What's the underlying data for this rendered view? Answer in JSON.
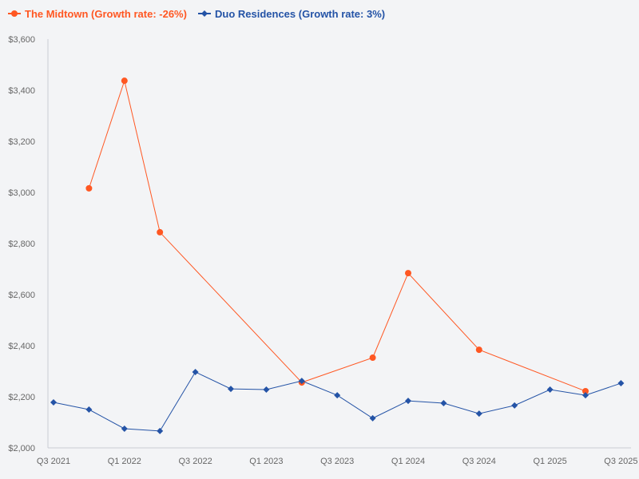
{
  "chart_data": {
    "type": "line",
    "title": "",
    "xlabel": "",
    "ylabel": "",
    "ylim": [
      2000,
      3600
    ],
    "yticks": [
      "$2,000",
      "$2,200",
      "$2,400",
      "$2,600",
      "$2,800",
      "$3,000",
      "$3,200",
      "$3,400",
      "$3,600"
    ],
    "ytick_values": [
      2000,
      2200,
      2400,
      2600,
      2800,
      3000,
      3200,
      3400,
      3600
    ],
    "categories": [
      "Q3 2021",
      "Q4 2021",
      "Q1 2022",
      "Q2 2022",
      "Q3 2022",
      "Q4 2022",
      "Q1 2023",
      "Q2 2023",
      "Q3 2023",
      "Q4 2023",
      "Q1 2024",
      "Q2 2024",
      "Q3 2024",
      "Q4 2024",
      "Q1 2025",
      "Q2 2025",
      "Q3 2025"
    ],
    "xtick_labels": [
      "Q3 2021",
      "Q1 2022",
      "Q3 2022",
      "Q1 2023",
      "Q3 2023",
      "Q1 2024",
      "Q3 2024",
      "Q1 2025",
      "Q3 2025"
    ],
    "grid": false,
    "legend_position": "top-left",
    "series": [
      {
        "name": "The Midtown (Growth rate: -26%)",
        "color": "#ff5722",
        "marker": "circle",
        "values": [
          null,
          3016,
          3437,
          2844,
          null,
          null,
          null,
          2256,
          null,
          2353,
          2684,
          null,
          2384,
          null,
          null,
          2222,
          null
        ]
      },
      {
        "name": "Duo Residences (Growth rate: 3%)",
        "color": "#2453a6",
        "marker": "diamond",
        "values": [
          2178,
          2150,
          2075,
          2066,
          2297,
          2231,
          2228,
          2262,
          2206,
          2116,
          2184,
          2175,
          2134,
          2166,
          2228,
          2206,
          2253
        ]
      }
    ]
  }
}
